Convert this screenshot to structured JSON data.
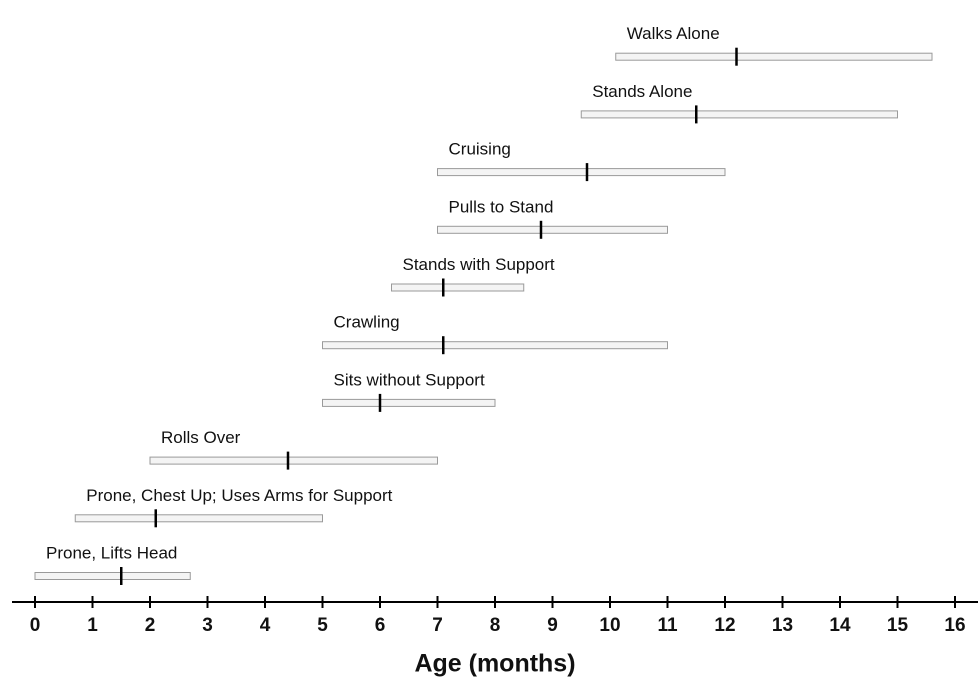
{
  "chart_data": {
    "type": "range",
    "xlabel": "Age (months)",
    "categories": [
      "Prone, Lifts Head",
      "Prone, Chest Up; Uses Arms for Support",
      "Rolls Over",
      "Sits without Support",
      "Crawling",
      "Stands with Support",
      "Pulls to Stand",
      "Cruising",
      "Stands Alone",
      "Walks Alone"
    ],
    "start": [
      0,
      0.7,
      2,
      5,
      5,
      6.2,
      7,
      7,
      9.5,
      10.1
    ],
    "end": [
      2.7,
      5,
      7,
      8,
      11,
      8.5,
      11,
      12,
      15,
      15.6
    ],
    "median": [
      1.5,
      2.1,
      4.4,
      6,
      7.1,
      7.1,
      8.8,
      9.6,
      11.5,
      12.2
    ],
    "xlim": [
      -0.4,
      16.4
    ],
    "xticks": [
      0,
      1,
      2,
      3,
      4,
      5,
      6,
      7,
      8,
      9,
      10,
      11,
      12,
      13,
      14,
      15,
      16
    ],
    "bar_color": "#f4f4f4",
    "bar_edge": "#9a9a9a",
    "median_color": "#000000"
  }
}
